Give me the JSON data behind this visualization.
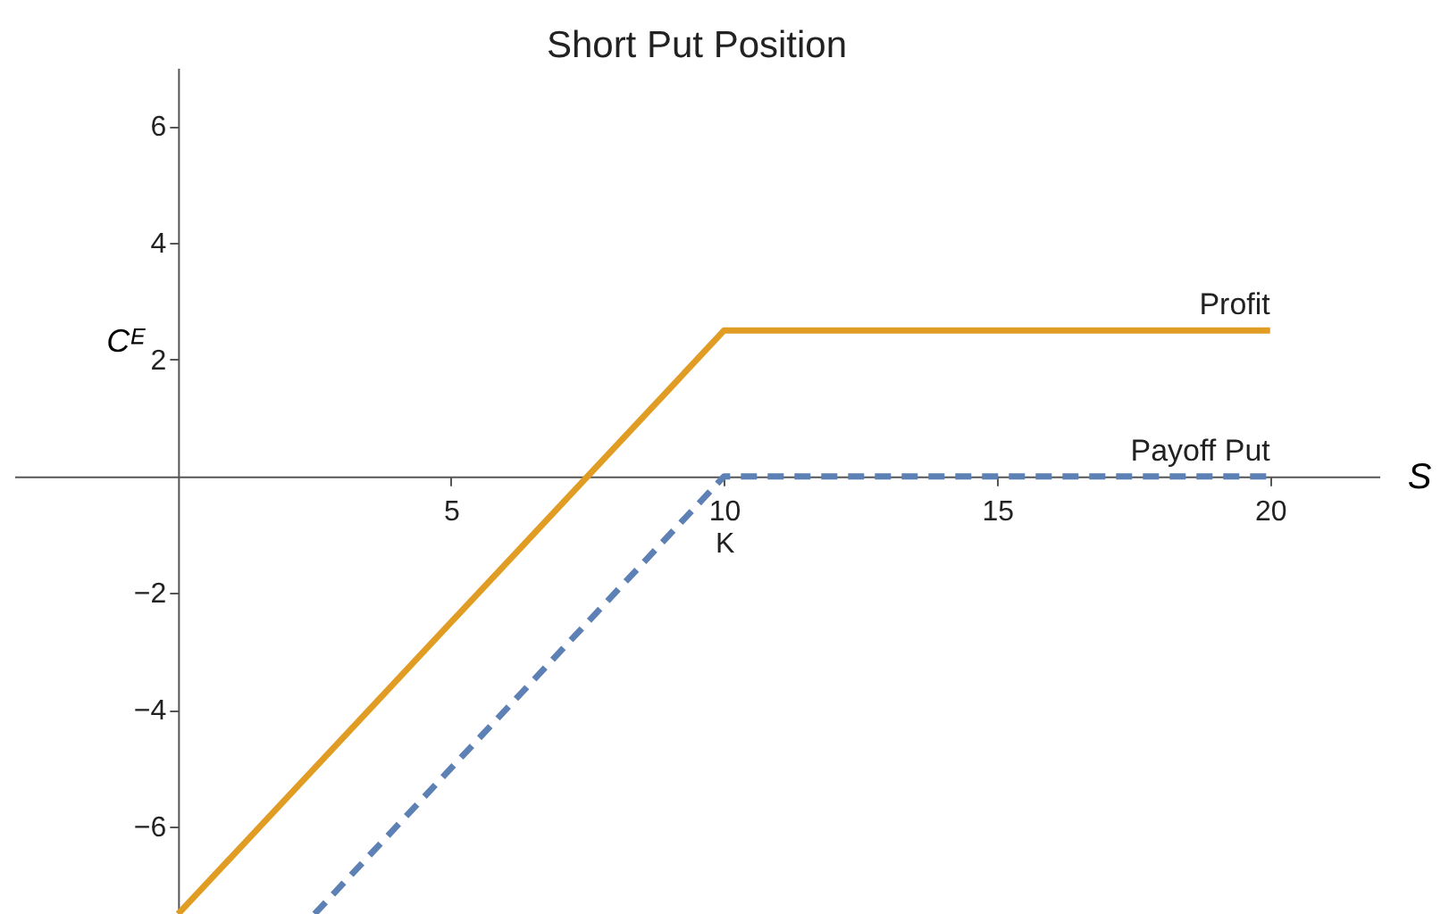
{
  "chart_data": {
    "type": "line",
    "title": "Short Put Position",
    "xlabel": "S",
    "ylabel": "Cᴱ",
    "xlim": [
      -3,
      22
    ],
    "ylim": [
      -7.5,
      7
    ],
    "xticks": [
      5,
      {
        "value": 10,
        "label": "10\nK"
      },
      15,
      20
    ],
    "yticks": [
      {
        "value": -6,
        "label": "−6"
      },
      {
        "value": -4,
        "label": "−4"
      },
      {
        "value": -2,
        "label": "−2"
      },
      2,
      4,
      6
    ],
    "series": [
      {
        "name": "Profit",
        "color": "#e19c24",
        "x": [
          0,
          10,
          20
        ],
        "values": [
          -7.5,
          2.5,
          2.5
        ],
        "line_style": "solid"
      },
      {
        "name": "Payoff Put",
        "color": "#5e81b5",
        "x": [
          2.5,
          10,
          20
        ],
        "values": [
          -7.5,
          0,
          0
        ],
        "line_style": "dashed"
      }
    ],
    "grid": false,
    "marker": "none"
  }
}
